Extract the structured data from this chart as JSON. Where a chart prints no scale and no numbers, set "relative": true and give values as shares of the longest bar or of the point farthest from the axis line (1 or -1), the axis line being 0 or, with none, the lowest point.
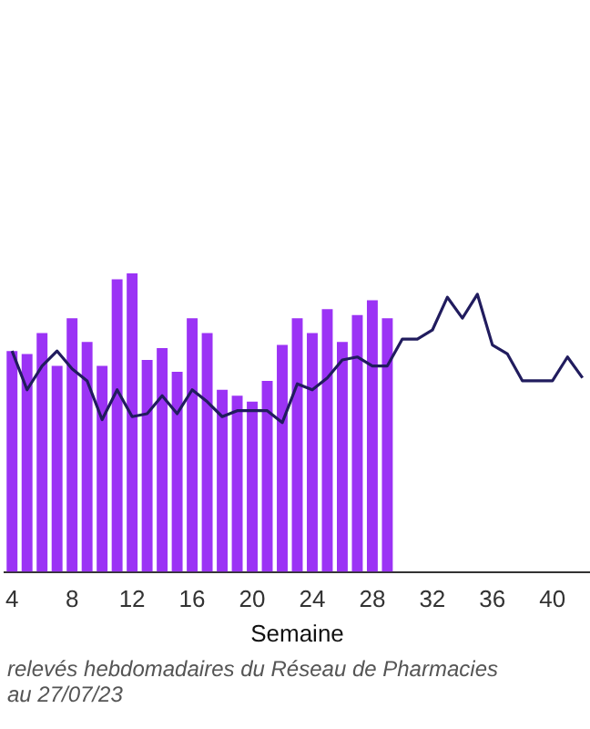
{
  "chart_data": {
    "type": "bar",
    "relative": true,
    "xlabel": "Semaine",
    "x": [
      4,
      5,
      6,
      7,
      8,
      9,
      10,
      11,
      12,
      13,
      14,
      15,
      16,
      17,
      18,
      19,
      20,
      21,
      22,
      23,
      24,
      25,
      26,
      27,
      28,
      29,
      30,
      31,
      32,
      33,
      34,
      35,
      36,
      37,
      38,
      39,
      40,
      41,
      42
    ],
    "xlim": [
      3.5,
      42.5
    ],
    "xticks": [
      4,
      8,
      12,
      16,
      20,
      24,
      28,
      32,
      36,
      40
    ],
    "series": [
      {
        "color": "#9b33f5",
        "values": [
          0.74,
          0.73,
          0.8,
          0.69,
          0.85,
          0.77,
          0.69,
          0.98,
          1,
          0.71,
          0.75,
          0.67,
          0.85,
          0.8,
          0.61,
          0.59,
          0.57,
          0.64,
          0.76,
          0.85,
          0.8,
          0.88,
          0.77,
          0.86,
          0.91,
          0.85,
          null,
          null,
          null,
          null,
          null,
          null,
          null,
          null,
          null,
          null,
          null,
          null,
          null
        ]
      },
      {
        "type": "line",
        "color": "#211c5e",
        "values": [
          0.74,
          0.61,
          0.69,
          0.74,
          0.68,
          0.64,
          0.51,
          0.61,
          0.52,
          0.53,
          0.59,
          0.53,
          0.61,
          0.57,
          0.52,
          0.54,
          0.54,
          0.54,
          0.5,
          0.63,
          0.61,
          0.65,
          0.71,
          0.72,
          0.69,
          0.69,
          0.78,
          0.78,
          0.81,
          0.92,
          0.85,
          0.93,
          0.76,
          0.73,
          0.64,
          0.64,
          0.64,
          0.72,
          0.65
        ]
      }
    ],
    "grid": false,
    "legend": false,
    "marker": "none",
    "annotations": [
      "relevés hebdomadaires du Réseau de Pharmacies",
      "au 27/07/23"
    ]
  }
}
